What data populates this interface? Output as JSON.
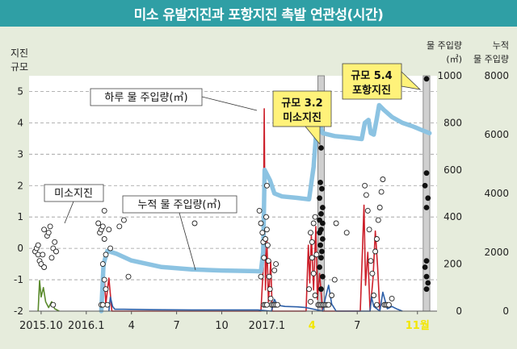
{
  "title": "미소 유발지진과 포항지진 촉발 연관성(시간)",
  "colors": {
    "header_bg": "#2f9fa5",
    "page_bg": "#e6ecdc",
    "plot_bg": "#ffffff",
    "cumulative_line": "#8cc3e2",
    "daily_red": "#cc1f2a",
    "daily_blue": "#2c5fa8",
    "daily_green": "#5a8a2c",
    "highlight_yellow": "#f2e600",
    "callout_bg": "#fff27a",
    "quake_band": "#cfcfcf"
  },
  "chart_data": {
    "type": "line",
    "title": "미소 유발지진과 포항지진 촉발 연관성(시간)",
    "y_left": {
      "label_lines": [
        "지진",
        "규모"
      ],
      "range": [
        -2,
        5.5
      ],
      "ticks": [
        "5",
        "4",
        "3",
        "2",
        "1",
        "0",
        "-1",
        "-2"
      ]
    },
    "y_right1": {
      "label_lines": [
        "물 주입량",
        "(㎥)"
      ],
      "range": [
        0,
        1000
      ],
      "ticks": [
        "1000",
        "800",
        "600",
        "400",
        "200",
        "0"
      ]
    },
    "y_right2": {
      "label_lines": [
        "누적",
        "물 주입량"
      ],
      "range": [
        0,
        8000
      ],
      "ticks": [
        "8000",
        "6000",
        "4000",
        "2000",
        "0"
      ]
    },
    "x_ticks": [
      {
        "label": "2015.10",
        "m": 0,
        "highlight": false
      },
      {
        "label": "2016.1",
        "m": 3,
        "highlight": false
      },
      {
        "label": "4",
        "m": 6,
        "highlight": false
      },
      {
        "label": "7",
        "m": 9,
        "highlight": false
      },
      {
        "label": "10",
        "m": 12,
        "highlight": false
      },
      {
        "label": "2017.1",
        "m": 15,
        "highlight": false
      },
      {
        "label": "4",
        "m": 18,
        "highlight": true
      },
      {
        "label": "7",
        "m": 21,
        "highlight": false
      },
      {
        "label": "11월",
        "m": 25,
        "highlight": true
      }
    ],
    "x_range_months": [
      -0.8,
      26.3
    ],
    "grid": true,
    "series": [
      {
        "name": "누적 물 주입량(㎥)",
        "axis": "y_right2",
        "style": "thick-line",
        "points": [
          [
            4.0,
            0
          ],
          [
            4.15,
            1600
          ],
          [
            4.4,
            2050
          ],
          [
            5,
            1950
          ],
          [
            6,
            1720
          ],
          [
            8,
            1500
          ],
          [
            10,
            1420
          ],
          [
            12,
            1380
          ],
          [
            14.2,
            1360
          ],
          [
            14.6,
            1350
          ],
          [
            14.75,
            2000
          ],
          [
            14.85,
            4800
          ],
          [
            15.2,
            4450
          ],
          [
            15.5,
            4000
          ],
          [
            16,
            3900
          ],
          [
            17,
            3850
          ],
          [
            17.8,
            3800
          ],
          [
            18.1,
            4900
          ],
          [
            18.35,
            6600
          ],
          [
            18.7,
            6050
          ],
          [
            19.5,
            5950
          ],
          [
            20.5,
            5900
          ],
          [
            21.3,
            5850
          ],
          [
            21.5,
            6400
          ],
          [
            21.75,
            6500
          ],
          [
            21.9,
            6050
          ],
          [
            22.1,
            6000
          ],
          [
            22.3,
            6550
          ],
          [
            22.45,
            7000
          ],
          [
            22.75,
            6850
          ],
          [
            23.3,
            6600
          ],
          [
            24,
            6400
          ],
          [
            24.7,
            6280
          ],
          [
            25.3,
            6150
          ],
          [
            25.8,
            6050
          ]
        ]
      }
    ],
    "daily_injection": [
      {
        "color": "red",
        "axis": "y_right1",
        "points": [
          [
            4.0,
            0
          ],
          [
            4.15,
            200
          ],
          [
            4.3,
            30
          ],
          [
            4.5,
            140
          ],
          [
            4.7,
            0
          ],
          [
            14.6,
            0
          ],
          [
            14.75,
            180
          ],
          [
            14.82,
            860
          ],
          [
            14.9,
            90
          ],
          [
            15.0,
            300
          ],
          [
            15.1,
            40
          ],
          [
            15.25,
            210
          ],
          [
            15.35,
            0
          ],
          [
            17.6,
            0
          ],
          [
            17.75,
            280
          ],
          [
            17.85,
            120
          ],
          [
            17.95,
            320
          ],
          [
            18.1,
            90
          ],
          [
            18.25,
            360
          ],
          [
            18.35,
            50
          ],
          [
            18.5,
            160
          ],
          [
            18.7,
            0
          ],
          [
            21.2,
            0
          ],
          [
            21.35,
            270
          ],
          [
            21.45,
            450
          ],
          [
            21.55,
            110
          ],
          [
            21.7,
            250
          ],
          [
            21.85,
            0
          ],
          [
            22.05,
            140
          ],
          [
            22.2,
            340
          ],
          [
            22.35,
            190
          ],
          [
            22.5,
            0
          ]
        ]
      },
      {
        "color": "blue",
        "axis": "y_right1",
        "points": [
          [
            4.5,
            0
          ],
          [
            4.6,
            60
          ],
          [
            4.75,
            20
          ],
          [
            4.9,
            8
          ],
          [
            5.5,
            8
          ],
          [
            7.2,
            6
          ],
          [
            10,
            5
          ],
          [
            12.5,
            5
          ],
          [
            14.4,
            5
          ],
          [
            15.3,
            0
          ],
          [
            15.5,
            50
          ],
          [
            15.7,
            25
          ],
          [
            16.2,
            20
          ],
          [
            17.0,
            18
          ],
          [
            17.6,
            15
          ],
          [
            18.7,
            0
          ],
          [
            18.9,
            60
          ],
          [
            19.1,
            110
          ],
          [
            19.3,
            30
          ],
          [
            19.6,
            0
          ],
          [
            21.85,
            0
          ],
          [
            21.95,
            60
          ],
          [
            22.1,
            20
          ],
          [
            22.5,
            0
          ],
          [
            22.7,
            80
          ],
          [
            23.0,
            10
          ],
          [
            23.3,
            20
          ],
          [
            23.6,
            10
          ],
          [
            24.0,
            0
          ]
        ]
      },
      {
        "color": "green",
        "axis": "y_right1",
        "points": [
          [
            -0.2,
            0
          ],
          [
            -0.1,
            130
          ],
          [
            0.0,
            60
          ],
          [
            0.15,
            100
          ],
          [
            0.3,
            40
          ],
          [
            0.5,
            15
          ],
          [
            0.7,
            40
          ],
          [
            0.9,
            10
          ],
          [
            1.2,
            0
          ]
        ]
      }
    ],
    "earthquakes_open": [
      [
        -0.4,
        -0.1
      ],
      [
        -0.3,
        0.0
      ],
      [
        -0.2,
        -0.2
      ],
      [
        -0.2,
        0.1
      ],
      [
        -0.1,
        -0.4
      ],
      [
        0.0,
        -0.5
      ],
      [
        0.1,
        -0.2
      ],
      [
        0.2,
        -0.6
      ],
      [
        0.2,
        0.6
      ],
      [
        0.4,
        0.4
      ],
      [
        0.5,
        0.5
      ],
      [
        0.6,
        0.7
      ],
      [
        0.7,
        -0.3
      ],
      [
        0.8,
        0.0
      ],
      [
        0.9,
        0.2
      ],
      [
        1.0,
        -0.1
      ],
      [
        0.8,
        -1.8
      ],
      [
        3.8,
        0.8
      ],
      [
        3.9,
        0.5
      ],
      [
        4.0,
        0.6
      ],
      [
        4.1,
        0.7
      ],
      [
        4.2,
        0.3
      ],
      [
        4.3,
        -0.2
      ],
      [
        4.1,
        -0.5
      ],
      [
        4.2,
        -1.0
      ],
      [
        4.3,
        -1.3
      ],
      [
        4.4,
        -1.8
      ],
      [
        4.0,
        -1.8
      ],
      [
        4.1,
        -1.8
      ],
      [
        4.2,
        1.2
      ],
      [
        4.5,
        0.6
      ],
      [
        4.6,
        0.0
      ],
      [
        5.2,
        0.7
      ],
      [
        5.5,
        0.9
      ],
      [
        5.8,
        -0.9
      ],
      [
        10.2,
        0.8
      ],
      [
        14.5,
        1.2
      ],
      [
        14.6,
        0.8
      ],
      [
        14.7,
        0.5
      ],
      [
        14.75,
        0.2
      ],
      [
        14.8,
        -0.3
      ],
      [
        14.9,
        0.3
      ],
      [
        14.95,
        1.0
      ],
      [
        15.0,
        0.6
      ],
      [
        15.0,
        2.0
      ],
      [
        15.05,
        0.1
      ],
      [
        15.1,
        -0.4
      ],
      [
        15.15,
        -0.9
      ],
      [
        15.2,
        -1.3
      ],
      [
        15.25,
        -1.6
      ],
      [
        15.3,
        -1.8
      ],
      [
        15.4,
        -1.8
      ],
      [
        15.5,
        -1.8
      ],
      [
        15.6,
        -1.8
      ],
      [
        15.7,
        -1.8
      ],
      [
        14.8,
        -1.8
      ],
      [
        14.9,
        -1.8
      ],
      [
        15.0,
        -1.8
      ],
      [
        14.6,
        -0.9
      ],
      [
        15.5,
        -0.7
      ],
      [
        15.6,
        -0.5
      ],
      [
        17.9,
        0.5
      ],
      [
        18.0,
        0.2
      ],
      [
        18.0,
        -0.3
      ],
      [
        18.1,
        0.8
      ],
      [
        18.1,
        -0.8
      ],
      [
        18.2,
        1.0
      ],
      [
        18.3,
        -0.2
      ],
      [
        17.8,
        -1.3
      ],
      [
        17.9,
        -1.7
      ],
      [
        18.2,
        -1.5
      ],
      [
        18.4,
        -1.8
      ],
      [
        18.5,
        -1.8
      ],
      [
        18.6,
        -1.8
      ],
      [
        18.7,
        -1.8
      ],
      [
        18.8,
        -1.8
      ],
      [
        18.9,
        -1.8
      ],
      [
        19.0,
        -1.8
      ],
      [
        19.1,
        -1.8
      ],
      [
        19.3,
        -1.5
      ],
      [
        19.5,
        -1.0
      ],
      [
        19.6,
        0.8
      ],
      [
        20.3,
        0.5
      ],
      [
        21.5,
        2.0
      ],
      [
        21.6,
        1.7
      ],
      [
        21.7,
        1.2
      ],
      [
        21.8,
        0.6
      ],
      [
        21.9,
        -0.4
      ],
      [
        22.0,
        -0.8
      ],
      [
        22.1,
        -1.5
      ],
      [
        22.2,
        -0.1
      ],
      [
        22.3,
        0.3
      ],
      [
        22.4,
        0.9
      ],
      [
        22.5,
        1.3
      ],
      [
        22.6,
        1.8
      ],
      [
        22.7,
        2.2
      ],
      [
        22.8,
        -1.8
      ],
      [
        22.9,
        -1.8
      ],
      [
        23.0,
        -1.8
      ],
      [
        23.1,
        -1.8
      ],
      [
        23.3,
        -1.6
      ],
      [
        22.3,
        -1.8
      ]
    ],
    "earthquakes_filled": [
      [
        18.6,
        3.2
      ],
      [
        18.55,
        2.1
      ],
      [
        18.65,
        1.9
      ],
      [
        18.5,
        1.6
      ],
      [
        18.7,
        1.3
      ],
      [
        18.6,
        1.1
      ],
      [
        18.5,
        0.9
      ],
      [
        18.7,
        0.8
      ],
      [
        18.6,
        0.6
      ],
      [
        18.5,
        0.5
      ],
      [
        18.7,
        0.3
      ],
      [
        18.55,
        0.1
      ],
      [
        18.65,
        -0.1
      ],
      [
        18.6,
        -0.3
      ],
      [
        18.5,
        -0.6
      ],
      [
        18.7,
        -0.9
      ],
      [
        18.6,
        -1.3
      ],
      [
        25.6,
        5.4
      ],
      [
        25.6,
        2.4
      ],
      [
        25.5,
        2.0
      ],
      [
        25.7,
        1.6
      ],
      [
        25.6,
        1.3
      ],
      [
        25.6,
        -0.4
      ],
      [
        25.5,
        -0.6
      ],
      [
        25.6,
        -0.9
      ],
      [
        25.7,
        -1.1
      ],
      [
        25.6,
        -1.3
      ]
    ],
    "quake_bands": [
      [
        18.38,
        18.82
      ],
      [
        25.38,
        25.82
      ]
    ],
    "annotations": {
      "daily_label": "하루 물 주입량(㎥)",
      "cumulative_label": "누적 물 주입량(㎥)",
      "micro_label": "미소지진",
      "quake1": [
        "규모 3.2",
        "미소지진"
      ],
      "quake2": [
        "규모 5.4",
        "포항지진"
      ]
    }
  }
}
